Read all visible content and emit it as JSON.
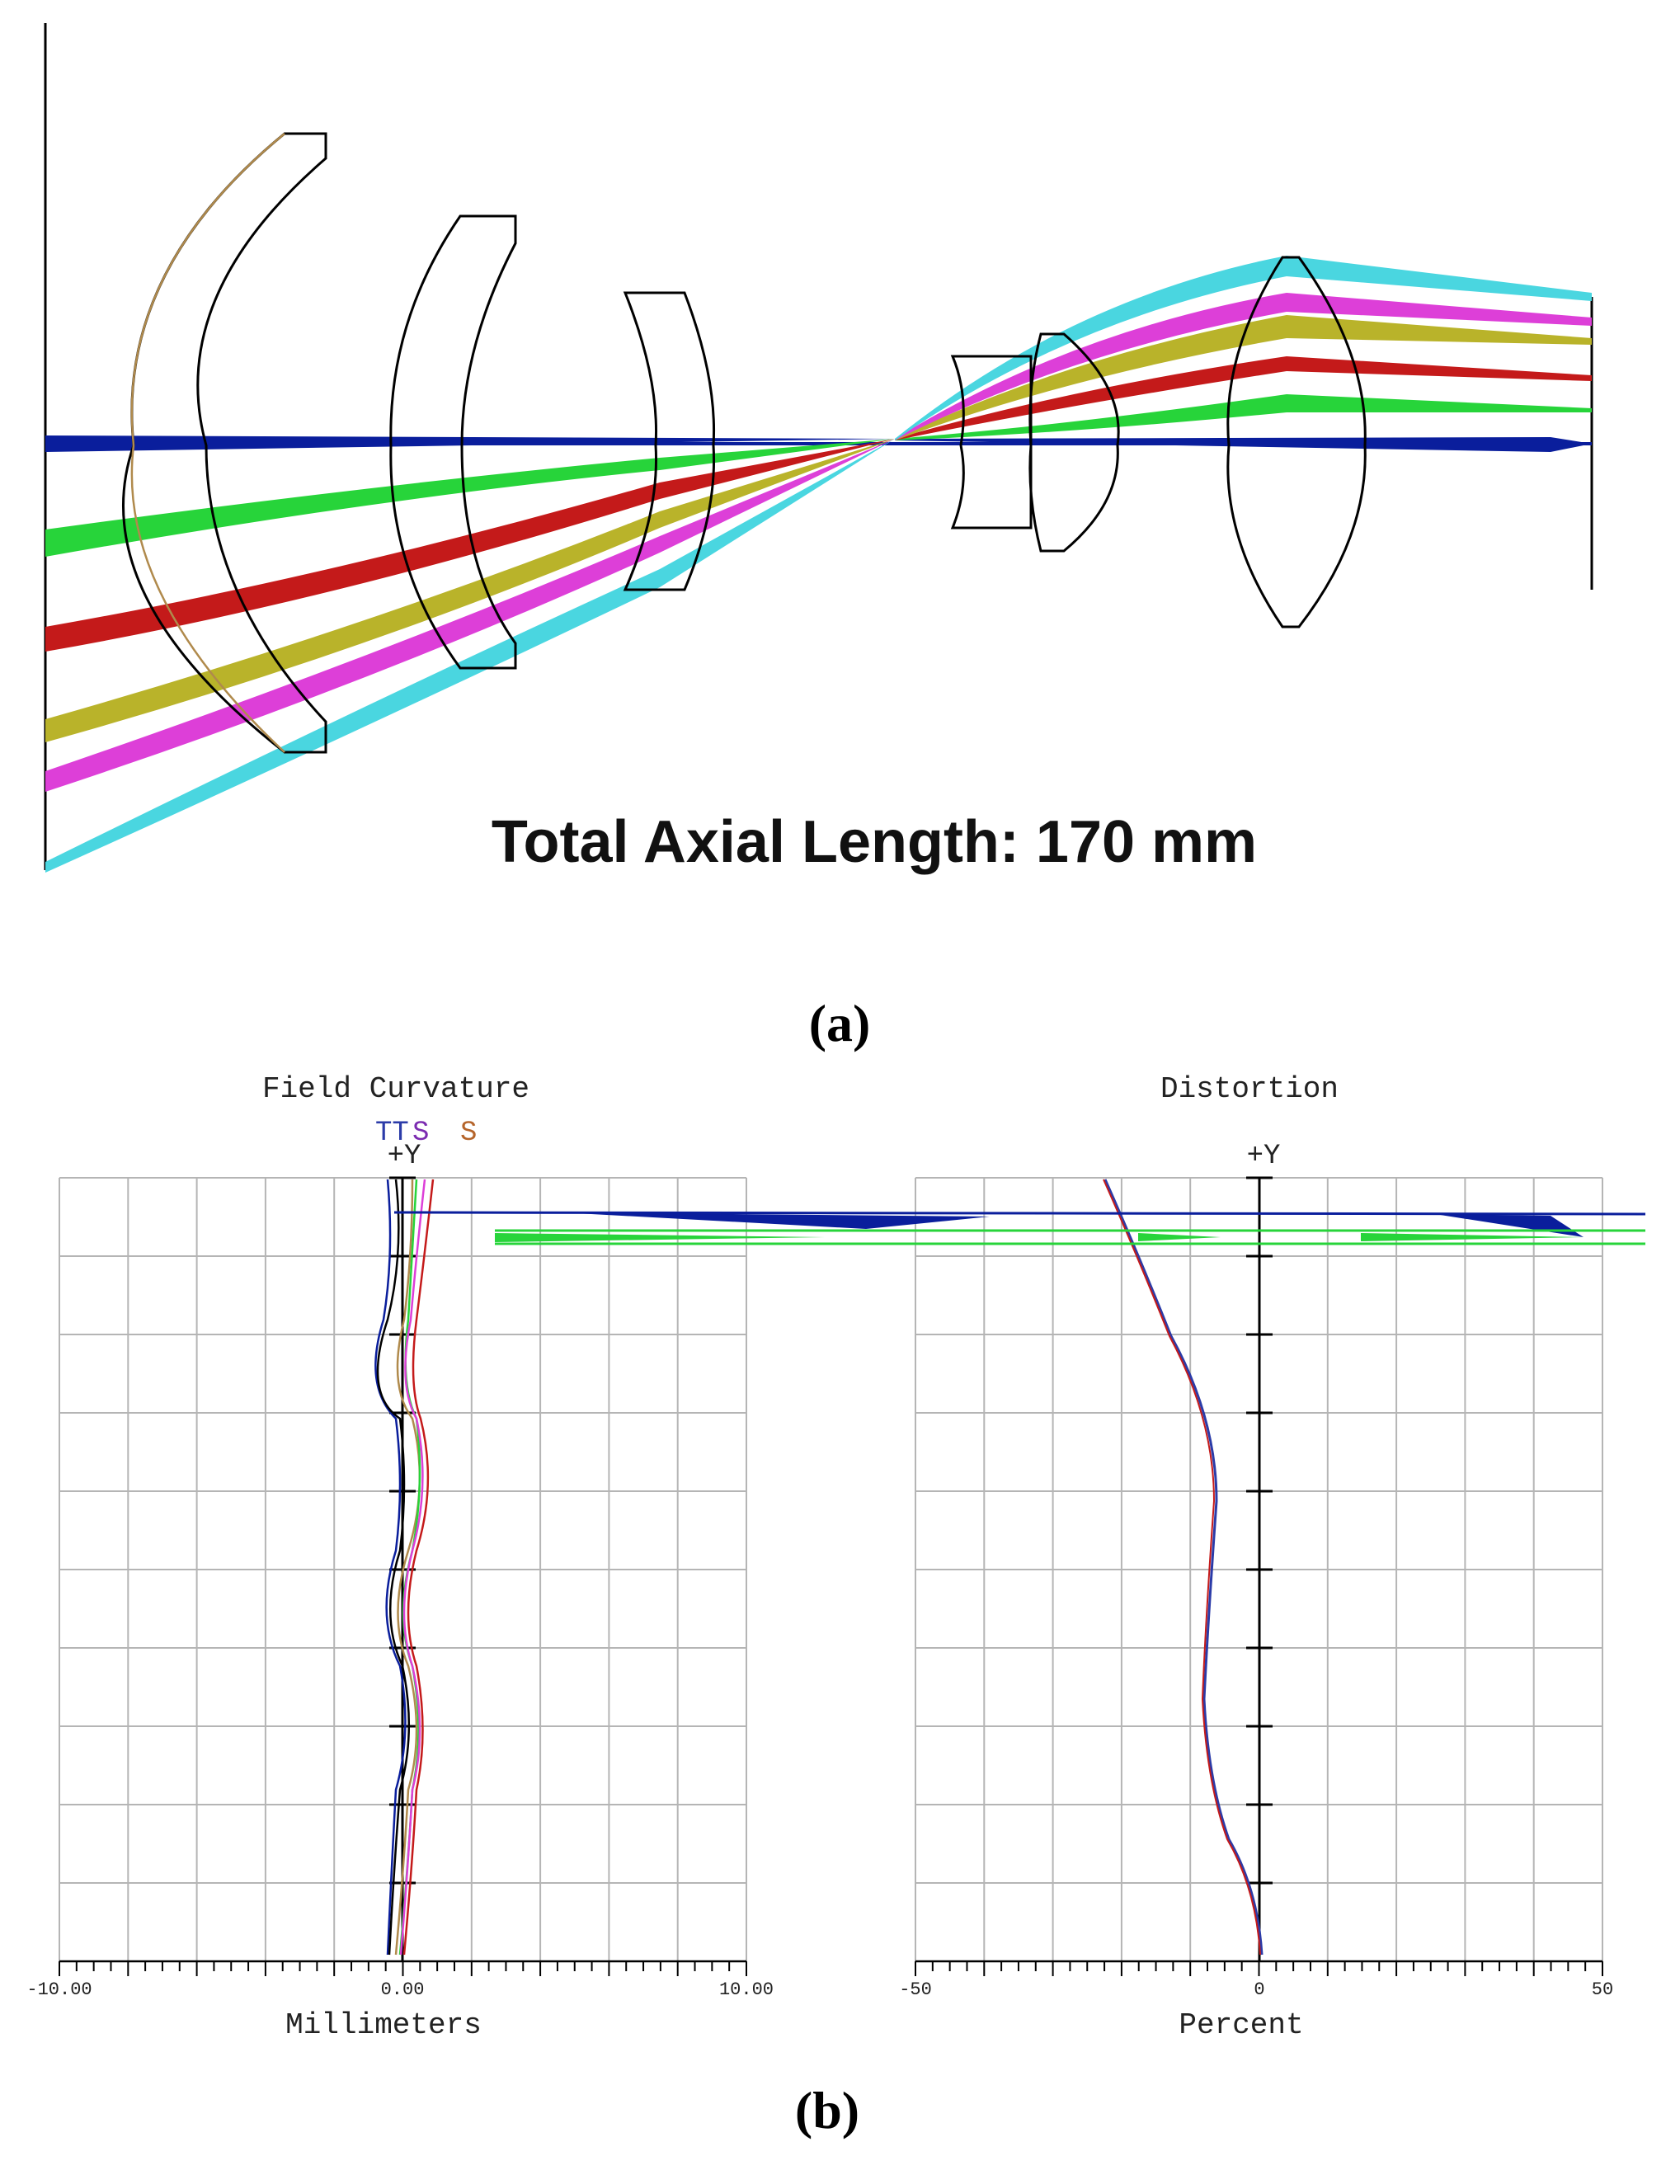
{
  "panel_a": {
    "caption": "(a)",
    "axial_length_label": "Total Axial Length: 170 mm",
    "ray_colors": {
      "axial": "#0a1e9c",
      "field_1": "#27d43a",
      "field_2": "#c41a1a",
      "field_3": "#b9b32a",
      "field_4": "#dd3fd8",
      "field_5": "#4ad6e0"
    }
  },
  "panel_b": {
    "caption": "(b)",
    "field_curvature": {
      "title": "Field Curvature",
      "legend_tt": "TT",
      "legend_s1": "S",
      "legend_s2": "S",
      "axis_label": "+Y",
      "x_label": "Millimeters",
      "ticks": [
        "-10.00",
        "0.00",
        "10.00"
      ],
      "xlim": [
        -10,
        10
      ]
    },
    "distortion": {
      "title": "Distortion",
      "axis_label": "+Y",
      "x_label": "Percent",
      "ticks": [
        "-50",
        "0",
        "50"
      ],
      "xlim": [
        -50,
        50
      ]
    }
  }
}
